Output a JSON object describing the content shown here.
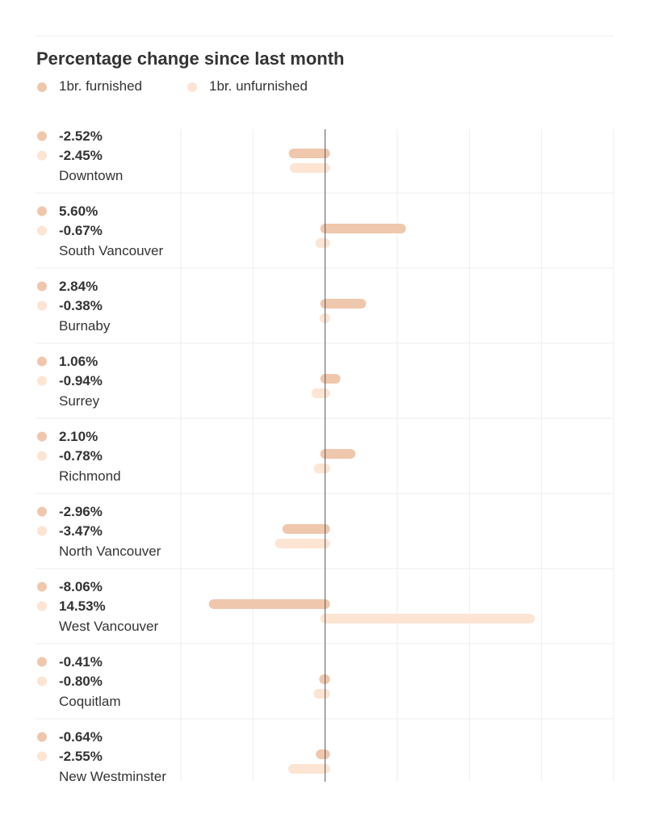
{
  "chart_data": {
    "type": "bar",
    "title": "Percentage change since last month",
    "orientation": "horizontal",
    "legend_position": "top-left",
    "grid": true,
    "xlim": [
      -10,
      20
    ],
    "series": [
      {
        "name": "1br. furnished",
        "color": "#efc7ad"
      },
      {
        "name": "1br. unfurnished",
        "color": "#fde4d3"
      }
    ],
    "rows": [
      {
        "category": "Downtown",
        "values": [
          -2.52,
          -2.45
        ],
        "labels": [
          "-2.52%",
          "-2.45%"
        ]
      },
      {
        "category": "South Vancouver",
        "values": [
          5.6,
          -0.67
        ],
        "labels": [
          "5.60%",
          "-0.67%"
        ]
      },
      {
        "category": "Burnaby",
        "values": [
          2.84,
          -0.38
        ],
        "labels": [
          "2.84%",
          "-0.38%"
        ]
      },
      {
        "category": "Surrey",
        "values": [
          1.06,
          -0.94
        ],
        "labels": [
          "1.06%",
          "-0.94%"
        ]
      },
      {
        "category": "Richmond",
        "values": [
          2.1,
          -0.78
        ],
        "labels": [
          "2.10%",
          "-0.78%"
        ]
      },
      {
        "category": "North Vancouver",
        "values": [
          -2.96,
          -3.47
        ],
        "labels": [
          "-2.96%",
          "-3.47%"
        ]
      },
      {
        "category": "West Vancouver",
        "values": [
          -8.06,
          14.53
        ],
        "labels": [
          "-8.06%",
          "14.53%"
        ]
      },
      {
        "category": "Coquitlam",
        "values": [
          -0.41,
          -0.8
        ],
        "labels": [
          "-0.41%",
          "-0.80%"
        ]
      },
      {
        "category": "New Westminster",
        "values": [
          -0.64,
          -2.55
        ],
        "labels": [
          "-0.64%",
          "-2.55%"
        ]
      }
    ]
  }
}
